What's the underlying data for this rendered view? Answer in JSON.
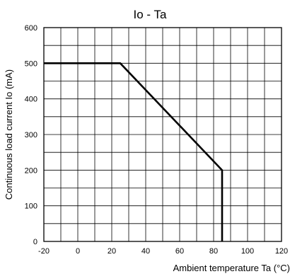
{
  "chart_data": {
    "type": "line",
    "title": "Io - Ta",
    "xlabel": "Ambient temperature Ta (°C)",
    "ylabel": "Continuous load current Io (mA)",
    "xlim": [
      -20,
      120
    ],
    "ylim": [
      0,
      600
    ],
    "x_ticks": [
      -20,
      0,
      20,
      40,
      60,
      80,
      100,
      120
    ],
    "y_ticks": [
      0,
      100,
      200,
      300,
      400,
      500,
      600
    ],
    "x_minor_step": 10,
    "y_minor_step": 50,
    "grid": true,
    "series": [
      {
        "points": [
          {
            "x": -20,
            "y": 500
          },
          {
            "x": 25,
            "y": 500
          },
          {
            "x": 85,
            "y": 200
          },
          {
            "x": 85,
            "y": 0
          }
        ]
      }
    ]
  }
}
